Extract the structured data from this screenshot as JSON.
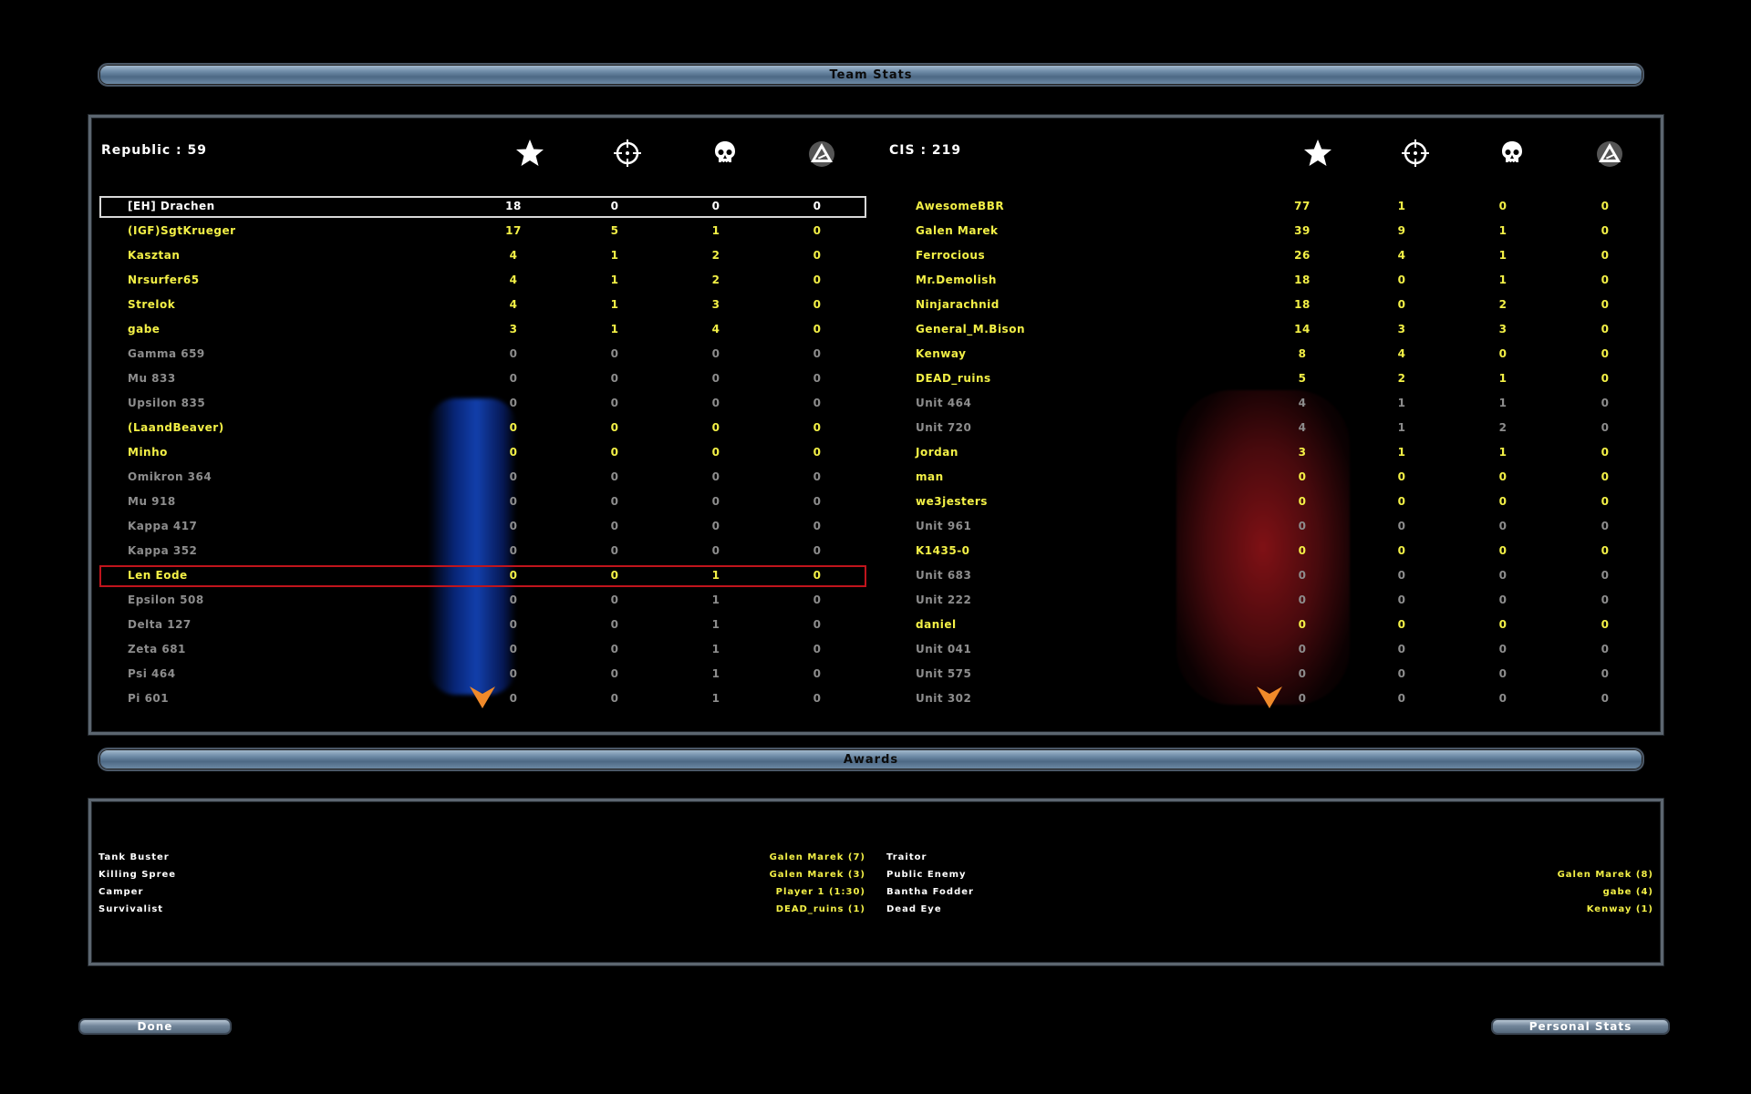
{
  "headers": {
    "team_stats": "Team Stats",
    "awards": "Awards"
  },
  "icons": {
    "points": "star-icon",
    "kills": "crosshair-icon",
    "deaths": "skull-icon",
    "captures": "cp-triangle-icon"
  },
  "republic": {
    "title": "Republic : 59",
    "rows": [
      {
        "name": "[EH] Drachen",
        "v": [
          "18",
          "0",
          "0",
          "0"
        ],
        "style": "white",
        "highlight": "white"
      },
      {
        "name": "(IGF)SgtKrueger",
        "v": [
          "17",
          "5",
          "1",
          "0"
        ],
        "style": "yellow"
      },
      {
        "name": "Kasztan",
        "v": [
          "4",
          "1",
          "2",
          "0"
        ],
        "style": "yellow"
      },
      {
        "name": "Nrsurfer65",
        "v": [
          "4",
          "1",
          "2",
          "0"
        ],
        "style": "yellow"
      },
      {
        "name": "Strelok",
        "v": [
          "4",
          "1",
          "3",
          "0"
        ],
        "style": "yellow"
      },
      {
        "name": "gabe",
        "v": [
          "3",
          "1",
          "4",
          "0"
        ],
        "style": "yellow"
      },
      {
        "name": "Gamma 659",
        "v": [
          "0",
          "0",
          "0",
          "0"
        ],
        "style": "grey"
      },
      {
        "name": "Mu 833",
        "v": [
          "0",
          "0",
          "0",
          "0"
        ],
        "style": "grey"
      },
      {
        "name": "Upsilon 835",
        "v": [
          "0",
          "0",
          "0",
          "0"
        ],
        "style": "grey"
      },
      {
        "name": "(LaandBeaver)",
        "v": [
          "0",
          "0",
          "0",
          "0"
        ],
        "style": "yellow"
      },
      {
        "name": "Minho",
        "v": [
          "0",
          "0",
          "0",
          "0"
        ],
        "style": "yellow"
      },
      {
        "name": "Omikron 364",
        "v": [
          "0",
          "0",
          "0",
          "0"
        ],
        "style": "grey"
      },
      {
        "name": "Mu 918",
        "v": [
          "0",
          "0",
          "0",
          "0"
        ],
        "style": "grey"
      },
      {
        "name": "Kappa 417",
        "v": [
          "0",
          "0",
          "0",
          "0"
        ],
        "style": "grey"
      },
      {
        "name": "Kappa 352",
        "v": [
          "0",
          "0",
          "0",
          "0"
        ],
        "style": "grey"
      },
      {
        "name": "Len Eode",
        "v": [
          "0",
          "0",
          "1",
          "0"
        ],
        "style": "yellow",
        "highlight": "red"
      },
      {
        "name": "Epsilon 508",
        "v": [
          "0",
          "0",
          "1",
          "0"
        ],
        "style": "grey"
      },
      {
        "name": "Delta 127",
        "v": [
          "0",
          "0",
          "1",
          "0"
        ],
        "style": "grey"
      },
      {
        "name": "Zeta 681",
        "v": [
          "0",
          "0",
          "1",
          "0"
        ],
        "style": "grey"
      },
      {
        "name": "Psi 464",
        "v": [
          "0",
          "0",
          "1",
          "0"
        ],
        "style": "grey"
      },
      {
        "name": "Pi 601",
        "v": [
          "0",
          "0",
          "1",
          "0"
        ],
        "style": "grey"
      }
    ]
  },
  "cis": {
    "title": "CIS : 219",
    "rows": [
      {
        "name": "AwesomeBBR",
        "v": [
          "77",
          "1",
          "0",
          "0"
        ],
        "style": "yellow"
      },
      {
        "name": "Galen Marek",
        "v": [
          "39",
          "9",
          "1",
          "0"
        ],
        "style": "yellow"
      },
      {
        "name": "Ferrocious",
        "v": [
          "26",
          "4",
          "1",
          "0"
        ],
        "style": "yellow"
      },
      {
        "name": "Mr.Demolish",
        "v": [
          "18",
          "0",
          "1",
          "0"
        ],
        "style": "yellow"
      },
      {
        "name": "Ninjarachnid",
        "v": [
          "18",
          "0",
          "2",
          "0"
        ],
        "style": "yellow"
      },
      {
        "name": "General_M.Bison",
        "v": [
          "14",
          "3",
          "3",
          "0"
        ],
        "style": "yellow"
      },
      {
        "name": "Kenway",
        "v": [
          "8",
          "4",
          "0",
          "0"
        ],
        "style": "yellow"
      },
      {
        "name": "DEAD_ruins",
        "v": [
          "5",
          "2",
          "1",
          "0"
        ],
        "style": "yellow"
      },
      {
        "name": "Unit 464",
        "v": [
          "4",
          "1",
          "1",
          "0"
        ],
        "style": "grey"
      },
      {
        "name": "Unit 720",
        "v": [
          "4",
          "1",
          "2",
          "0"
        ],
        "style": "grey"
      },
      {
        "name": "Jordan",
        "v": [
          "3",
          "1",
          "1",
          "0"
        ],
        "style": "yellow"
      },
      {
        "name": "man",
        "v": [
          "0",
          "0",
          "0",
          "0"
        ],
        "style": "yellow"
      },
      {
        "name": "we3jesters",
        "v": [
          "0",
          "0",
          "0",
          "0"
        ],
        "style": "yellow"
      },
      {
        "name": "Unit 961",
        "v": [
          "0",
          "0",
          "0",
          "0"
        ],
        "style": "grey"
      },
      {
        "name": "K1435-0",
        "v": [
          "0",
          "0",
          "0",
          "0"
        ],
        "style": "yellow"
      },
      {
        "name": "Unit 683",
        "v": [
          "0",
          "0",
          "0",
          "0"
        ],
        "style": "grey"
      },
      {
        "name": "Unit 222",
        "v": [
          "0",
          "0",
          "0",
          "0"
        ],
        "style": "grey"
      },
      {
        "name": "daniel",
        "v": [
          "0",
          "0",
          "0",
          "0"
        ],
        "style": "yellow"
      },
      {
        "name": "Unit 041",
        "v": [
          "0",
          "0",
          "0",
          "0"
        ],
        "style": "grey"
      },
      {
        "name": "Unit 575",
        "v": [
          "0",
          "0",
          "0",
          "0"
        ],
        "style": "grey"
      },
      {
        "name": "Unit 302",
        "v": [
          "0",
          "0",
          "0",
          "0"
        ],
        "style": "grey"
      }
    ]
  },
  "awards": {
    "left": [
      {
        "label": "Tank Buster",
        "value": "Galen Marek (7)"
      },
      {
        "label": "Killing Spree",
        "value": "Galen Marek (3)"
      },
      {
        "label": "Camper",
        "value": "Player 1 (1:30)"
      },
      {
        "label": "Survivalist",
        "value": "DEAD_ruins (1)"
      }
    ],
    "right": [
      {
        "label": "Traitor",
        "value": ""
      },
      {
        "label": "Public Enemy",
        "value": "Galen Marek (8)"
      },
      {
        "label": "Bantha Fodder",
        "value": "gabe (4)"
      },
      {
        "label": "Dead Eye",
        "value": "Kenway (1)"
      }
    ]
  },
  "buttons": {
    "done": "Done",
    "personal_stats": "Personal Stats"
  },
  "colors": {
    "yellow": "#f3f046",
    "grey": "#8d8d8d",
    "highlight_red": "#c0141c",
    "arrow": "#f08a2a"
  }
}
